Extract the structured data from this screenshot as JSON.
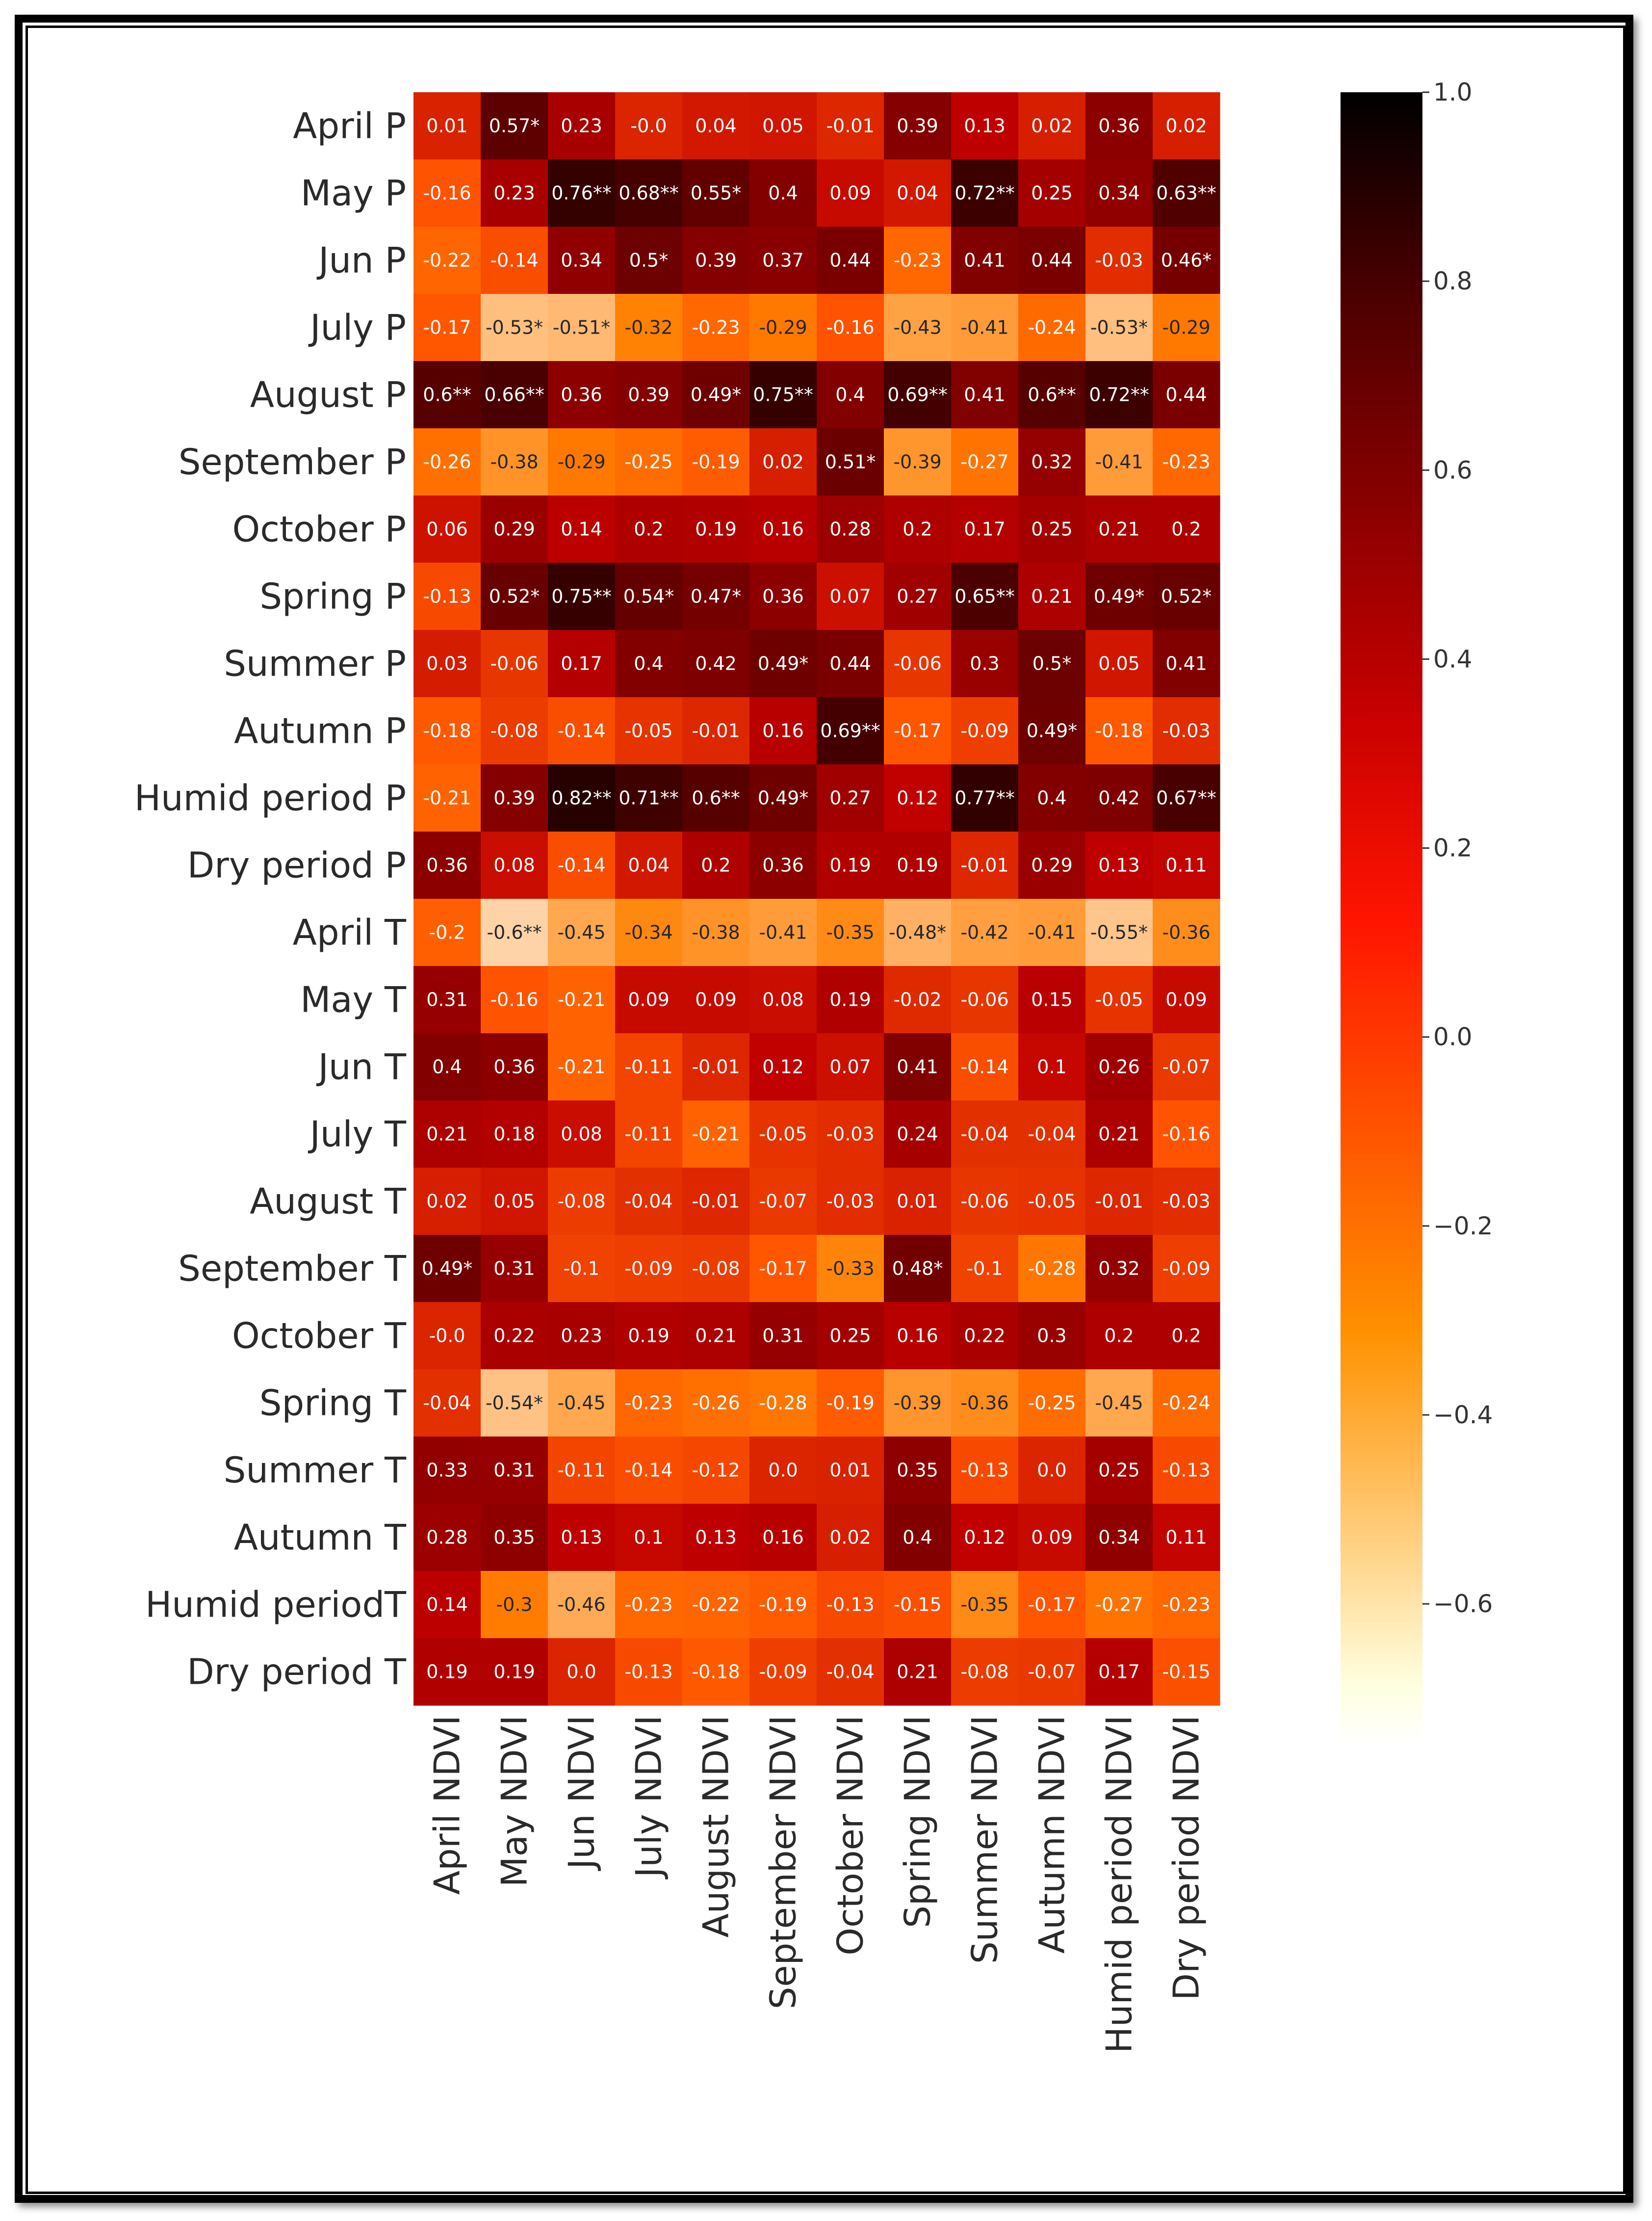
{
  "chart_data": {
    "type": "heatmap",
    "colormap": "gist_heat",
    "colorbar": {
      "min": -0.75,
      "max": 1.0,
      "ticks": [
        1.0,
        0.8,
        0.6,
        0.4,
        0.2,
        0.0,
        -0.2,
        -0.4,
        -0.6
      ],
      "tick_labels": [
        "1.0",
        "0.8",
        "0.6",
        "0.4",
        "0.2",
        "0.0",
        "−0.2",
        "−0.4",
        "−0.6"
      ]
    },
    "columns": [
      "April NDVI",
      "May NDVI",
      "Jun NDVI",
      "July NDVI",
      "August NDVI",
      "September NDVI",
      "October NDVI",
      "Spring NDVI",
      "Summer NDVI",
      "Autumn NDVI",
      "Humid  period NDVI",
      "Dry period NDVI"
    ],
    "rows": [
      "April P",
      "May P",
      "Jun P",
      "July P",
      "August P",
      "September P",
      "October P",
      "Spring P",
      "Summer P",
      "Autumn P",
      "Humid  period P",
      "Dry period P",
      "April T",
      "May T",
      "Jun T",
      "July T",
      "August T",
      "September T",
      "October T",
      "Spring T",
      "Summer T",
      "Autumn T",
      "Humid  periodT",
      "Dry period T"
    ],
    "values": [
      [
        0.01,
        0.57,
        0.23,
        -0.0,
        0.04,
        0.05,
        -0.01,
        0.39,
        0.13,
        0.02,
        0.36,
        0.02
      ],
      [
        -0.16,
        0.23,
        0.76,
        0.68,
        0.55,
        0.4,
        0.09,
        0.04,
        0.72,
        0.25,
        0.34,
        0.63
      ],
      [
        -0.22,
        -0.14,
        0.34,
        0.5,
        0.39,
        0.37,
        0.44,
        -0.23,
        0.41,
        0.44,
        -0.03,
        0.46
      ],
      [
        -0.17,
        -0.53,
        -0.51,
        -0.32,
        -0.23,
        -0.29,
        -0.16,
        -0.43,
        -0.41,
        -0.24,
        -0.53,
        -0.29
      ],
      [
        0.6,
        0.66,
        0.36,
        0.39,
        0.49,
        0.75,
        0.4,
        0.69,
        0.41,
        0.6,
        0.72,
        0.44
      ],
      [
        -0.26,
        -0.38,
        -0.29,
        -0.25,
        -0.19,
        0.02,
        0.51,
        -0.39,
        -0.27,
        0.32,
        -0.41,
        -0.23
      ],
      [
        0.06,
        0.29,
        0.14,
        0.2,
        0.19,
        0.16,
        0.28,
        0.2,
        0.17,
        0.25,
        0.21,
        0.2
      ],
      [
        -0.13,
        0.52,
        0.75,
        0.54,
        0.47,
        0.36,
        0.07,
        0.27,
        0.65,
        0.21,
        0.49,
        0.52
      ],
      [
        0.03,
        -0.06,
        0.17,
        0.4,
        0.42,
        0.49,
        0.44,
        -0.06,
        0.3,
        0.5,
        0.05,
        0.41
      ],
      [
        -0.18,
        -0.08,
        -0.14,
        -0.05,
        -0.01,
        0.16,
        0.69,
        -0.17,
        -0.09,
        0.49,
        -0.18,
        -0.03
      ],
      [
        -0.21,
        0.39,
        0.82,
        0.71,
        0.6,
        0.49,
        0.27,
        0.12,
        0.77,
        0.4,
        0.42,
        0.67
      ],
      [
        0.36,
        0.08,
        -0.14,
        0.04,
        0.2,
        0.36,
        0.19,
        0.19,
        -0.01,
        0.29,
        0.13,
        0.11
      ],
      [
        -0.2,
        -0.6,
        -0.45,
        -0.34,
        -0.38,
        -0.41,
        -0.35,
        -0.48,
        -0.42,
        -0.41,
        -0.55,
        -0.36
      ],
      [
        0.31,
        -0.16,
        -0.21,
        0.09,
        0.09,
        0.08,
        0.19,
        -0.02,
        -0.06,
        0.15,
        -0.05,
        0.09
      ],
      [
        0.4,
        0.36,
        -0.21,
        -0.11,
        -0.01,
        0.12,
        0.07,
        0.41,
        -0.14,
        0.1,
        0.26,
        -0.07
      ],
      [
        0.21,
        0.18,
        0.08,
        -0.11,
        -0.21,
        -0.05,
        -0.03,
        0.24,
        -0.04,
        -0.04,
        0.21,
        -0.16
      ],
      [
        0.02,
        0.05,
        -0.08,
        -0.04,
        -0.01,
        -0.07,
        -0.03,
        0.01,
        -0.06,
        -0.05,
        -0.01,
        -0.03
      ],
      [
        0.49,
        0.31,
        -0.1,
        -0.09,
        -0.08,
        -0.17,
        -0.33,
        0.48,
        -0.1,
        -0.28,
        0.32,
        -0.09
      ],
      [
        -0.0,
        0.22,
        0.23,
        0.19,
        0.21,
        0.31,
        0.25,
        0.16,
        0.22,
        0.3,
        0.2,
        0.2
      ],
      [
        -0.04,
        -0.54,
        -0.45,
        -0.23,
        -0.26,
        -0.28,
        -0.19,
        -0.39,
        -0.36,
        -0.25,
        -0.45,
        -0.24
      ],
      [
        0.33,
        0.31,
        -0.11,
        -0.14,
        -0.12,
        0.0,
        0.01,
        0.35,
        -0.13,
        0.0,
        0.25,
        -0.13
      ],
      [
        0.28,
        0.35,
        0.13,
        0.1,
        0.13,
        0.16,
        0.02,
        0.4,
        0.12,
        0.09,
        0.34,
        0.11
      ],
      [
        0.14,
        -0.3,
        -0.46,
        -0.23,
        -0.22,
        -0.19,
        -0.13,
        -0.15,
        -0.35,
        -0.17,
        -0.27,
        -0.23
      ],
      [
        0.19,
        0.19,
        0.0,
        -0.13,
        -0.18,
        -0.09,
        -0.04,
        0.21,
        -0.08,
        -0.07,
        0.17,
        -0.15
      ]
    ],
    "labels": [
      [
        "0.01",
        "0.57*",
        "0.23",
        "-0.0",
        "0.04",
        "0.05",
        "-0.01",
        "0.39",
        "0.13",
        "0.02",
        "0.36",
        "0.02"
      ],
      [
        "-0.16",
        "0.23",
        "0.76**",
        "0.68**",
        "0.55*",
        "0.4",
        "0.09",
        "0.04",
        "0.72**",
        "0.25",
        "0.34",
        "0.63**"
      ],
      [
        "-0.22",
        "-0.14",
        "0.34",
        "0.5*",
        "0.39",
        "0.37",
        "0.44",
        "-0.23",
        "0.41",
        "0.44",
        "-0.03",
        "0.46*"
      ],
      [
        "-0.17",
        "-0.53*",
        "-0.51*",
        "-0.32",
        "-0.23",
        "-0.29",
        "-0.16",
        "-0.43",
        "-0.41",
        "-0.24",
        "-0.53*",
        "-0.29"
      ],
      [
        "0.6**",
        "0.66**",
        "0.36",
        "0.39",
        "0.49*",
        "0.75**",
        "0.4",
        "0.69**",
        "0.41",
        "0.6**",
        "0.72**",
        "0.44"
      ],
      [
        "-0.26",
        "-0.38",
        "-0.29",
        "-0.25",
        "-0.19",
        "0.02",
        "0.51*",
        "-0.39",
        "-0.27",
        "0.32",
        "-0.41",
        "-0.23"
      ],
      [
        "0.06",
        "0.29",
        "0.14",
        "0.2",
        "0.19",
        "0.16",
        "0.28",
        "0.2",
        "0.17",
        "0.25",
        "0.21",
        "0.2"
      ],
      [
        "-0.13",
        "0.52*",
        "0.75**",
        "0.54*",
        "0.47*",
        "0.36",
        "0.07",
        "0.27",
        "0.65**",
        "0.21",
        "0.49*",
        "0.52*"
      ],
      [
        "0.03",
        "-0.06",
        "0.17",
        "0.4",
        "0.42",
        "0.49*",
        "0.44",
        "-0.06",
        "0.3",
        "0.5*",
        "0.05",
        "0.41"
      ],
      [
        "-0.18",
        "-0.08",
        "-0.14",
        "-0.05",
        "-0.01",
        "0.16",
        "0.69**",
        "-0.17",
        "-0.09",
        "0.49*",
        "-0.18",
        "-0.03"
      ],
      [
        "-0.21",
        "0.39",
        "0.82**",
        "0.71**",
        "0.6**",
        "0.49*",
        "0.27",
        "0.12",
        "0.77**",
        "0.4",
        "0.42",
        "0.67**"
      ],
      [
        "0.36",
        "0.08",
        "-0.14",
        "0.04",
        "0.2",
        "0.36",
        "0.19",
        "0.19",
        "-0.01",
        "0.29",
        "0.13",
        "0.11"
      ],
      [
        "-0.2",
        "-0.6**",
        "-0.45",
        "-0.34",
        "-0.38",
        "-0.41",
        "-0.35",
        "-0.48*",
        "-0.42",
        "-0.41",
        "-0.55*",
        "-0.36"
      ],
      [
        "0.31",
        "-0.16",
        "-0.21",
        "0.09",
        "0.09",
        "0.08",
        "0.19",
        "-0.02",
        "-0.06",
        "0.15",
        "-0.05",
        "0.09"
      ],
      [
        "0.4",
        "0.36",
        "-0.21",
        "-0.11",
        "-0.01",
        "0.12",
        "0.07",
        "0.41",
        "-0.14",
        "0.1",
        "0.26",
        "-0.07"
      ],
      [
        "0.21",
        "0.18",
        "0.08",
        "-0.11",
        "-0.21",
        "-0.05",
        "-0.03",
        "0.24",
        "-0.04",
        "-0.04",
        "0.21",
        "-0.16"
      ],
      [
        "0.02",
        "0.05",
        "-0.08",
        "-0.04",
        "-0.01",
        "-0.07",
        "-0.03",
        "0.01",
        "-0.06",
        "-0.05",
        "-0.01",
        "-0.03"
      ],
      [
        "0.49*",
        "0.31",
        "-0.1",
        "-0.09",
        "-0.08",
        "-0.17",
        "-0.33",
        "0.48*",
        "-0.1",
        "-0.28",
        "0.32",
        "-0.09"
      ],
      [
        "-0.0",
        "0.22",
        "0.23",
        "0.19",
        "0.21",
        "0.31",
        "0.25",
        "0.16",
        "0.22",
        "0.3",
        "0.2",
        "0.2"
      ],
      [
        "-0.04",
        "-0.54*",
        "-0.45",
        "-0.23",
        "-0.26",
        "-0.28",
        "-0.19",
        "-0.39",
        "-0.36",
        "-0.25",
        "-0.45",
        "-0.24"
      ],
      [
        "0.33",
        "0.31",
        "-0.11",
        "-0.14",
        "-0.12",
        "0.0",
        "0.01",
        "0.35",
        "-0.13",
        "0.0",
        "0.25",
        "-0.13"
      ],
      [
        "0.28",
        "0.35",
        "0.13",
        "0.1",
        "0.13",
        "0.16",
        "0.02",
        "0.4",
        "0.12",
        "0.09",
        "0.34",
        "0.11"
      ],
      [
        "0.14",
        "-0.3",
        "-0.46",
        "-0.23",
        "-0.22",
        "-0.19",
        "-0.13",
        "-0.15",
        "-0.35",
        "-0.17",
        "-0.27",
        "-0.23"
      ],
      [
        "0.19",
        "0.19",
        "0.0",
        "-0.13",
        "-0.18",
        "-0.09",
        "-0.04",
        "0.21",
        "-0.08",
        "-0.07",
        "0.17",
        "-0.15"
      ]
    ]
  }
}
